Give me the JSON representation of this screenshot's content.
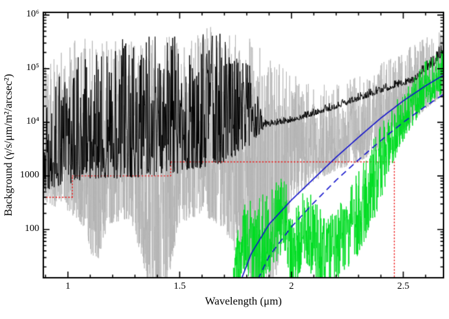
{
  "chart_data": {
    "type": "line",
    "title": "",
    "xlabel": "Wavelength (μm)",
    "ylabel": "Background (γ/s/μm/m²/arcsec²)",
    "xlim": [
      0.89,
      2.68
    ],
    "ylim_log10": [
      1.1,
      6.05
    ],
    "x_major_ticks": [
      1,
      1.5,
      2,
      2.5
    ],
    "x_tick_labels": [
      "1",
      "1.5",
      "2",
      "2.5"
    ],
    "x_minor_tick_step": 0.1,
    "y_major_ticks_log10": [
      2,
      3,
      4,
      5,
      6
    ],
    "y_tick_labels": [
      "100",
      "1000",
      "10⁴",
      "10⁵",
      "10⁶"
    ],
    "grid": false,
    "legend": null,
    "series": [
      {
        "name": "sky-emission-high-resolution",
        "kind": "noisy-spectrum",
        "color": "#b2b2b2",
        "line_width": 0.8,
        "samples": 2400,
        "seed": 1234567,
        "bias": 1.6,
        "x_range": [
          0.89,
          2.68
        ],
        "envelope_low_log10": [
          [
            0.89,
            2.5
          ],
          [
            1.0,
            2.35
          ],
          [
            1.08,
            2.0
          ],
          [
            1.12,
            1.2
          ],
          [
            1.18,
            2.1
          ],
          [
            1.27,
            2.2
          ],
          [
            1.33,
            1.5
          ],
          [
            1.37,
            0.7
          ],
          [
            1.44,
            0.9
          ],
          [
            1.5,
            2.1
          ],
          [
            1.6,
            2.3
          ],
          [
            1.7,
            2.0
          ],
          [
            1.78,
            1.3
          ],
          [
            1.85,
            0.8
          ],
          [
            1.93,
            1.1
          ],
          [
            2.0,
            2.5
          ],
          [
            2.1,
            2.9
          ],
          [
            2.2,
            3.1
          ],
          [
            2.3,
            3.25
          ],
          [
            2.4,
            3.5
          ],
          [
            2.5,
            3.85
          ],
          [
            2.6,
            4.25
          ],
          [
            2.68,
            4.5
          ]
        ],
        "envelope_high_log10": [
          [
            0.89,
            5.2
          ],
          [
            1.0,
            5.5
          ],
          [
            1.1,
            5.6
          ],
          [
            1.2,
            5.6
          ],
          [
            1.3,
            5.5
          ],
          [
            1.4,
            5.55
          ],
          [
            1.5,
            5.7
          ],
          [
            1.6,
            5.8
          ],
          [
            1.68,
            5.75
          ],
          [
            1.8,
            5.6
          ],
          [
            1.9,
            5.3
          ],
          [
            2.0,
            4.9
          ],
          [
            2.1,
            4.7
          ],
          [
            2.2,
            4.75
          ],
          [
            2.3,
            4.9
          ],
          [
            2.45,
            5.2
          ],
          [
            2.55,
            5.5
          ],
          [
            2.68,
            5.8
          ]
        ]
      },
      {
        "name": "red-dotted-threshold",
        "kind": "step",
        "color": "#ee1111",
        "line_width": 1.4,
        "dash": [
          1.2,
          3.4
        ],
        "steps": [
          {
            "x_start": 0.89,
            "x_end": 1.02,
            "value_log10": 2.6
          },
          {
            "x_start": 1.02,
            "x_end": 1.46,
            "value_log10": 3.0
          },
          {
            "x_start": 1.46,
            "x_end": 2.46,
            "value_log10": 3.26
          }
        ],
        "end_drop": {
          "x": 2.46,
          "from_log10": 3.26,
          "to_log10": 1.1
        }
      },
      {
        "name": "sky-emission-smoothed",
        "kind": "noisy-spectrum",
        "color": "#000000",
        "line_width": 1.0,
        "samples": 1000,
        "seed": 424242,
        "bias": 1.7,
        "x_range": [
          0.89,
          2.68
        ],
        "envelope_low_log10": [
          [
            0.89,
            2.7
          ],
          [
            0.95,
            2.8
          ],
          [
            1.1,
            2.95
          ],
          [
            1.3,
            2.95
          ],
          [
            1.5,
            3.05
          ],
          [
            1.7,
            3.25
          ],
          [
            1.8,
            3.5
          ],
          [
            1.88,
            3.9
          ],
          [
            2.0,
            4.0
          ],
          [
            2.2,
            4.25
          ],
          [
            2.4,
            4.55
          ],
          [
            2.55,
            4.75
          ],
          [
            2.68,
            5.2
          ]
        ],
        "envelope_high_log10": [
          [
            0.89,
            4.2
          ],
          [
            0.95,
            4.8
          ],
          [
            1.1,
            5.5
          ],
          [
            1.3,
            5.6
          ],
          [
            1.5,
            5.7
          ],
          [
            1.7,
            5.7
          ],
          [
            1.8,
            5.3
          ],
          [
            1.88,
            4.05
          ],
          [
            2.0,
            4.12
          ],
          [
            2.2,
            4.4
          ],
          [
            2.4,
            4.7
          ],
          [
            2.55,
            4.9
          ],
          [
            2.68,
            5.5
          ]
        ]
      },
      {
        "name": "thermal-emission-spectrum-green",
        "kind": "noisy-spectrum",
        "color": "#00dd22",
        "line_width": 1.0,
        "samples": 900,
        "seed": 777,
        "bias": 1.25,
        "x_range": [
          1.74,
          2.68
        ],
        "envelope_low_log10": [
          [
            1.74,
            0.6
          ],
          [
            1.78,
            1.2
          ],
          [
            1.84,
            0.8
          ],
          [
            1.9,
            1.2
          ],
          [
            1.97,
            1.6
          ],
          [
            2.01,
            0.7
          ],
          [
            2.05,
            1.4
          ],
          [
            2.1,
            1.1
          ],
          [
            2.16,
            0.7
          ],
          [
            2.22,
            1.1
          ],
          [
            2.3,
            1.5
          ],
          [
            2.38,
            2.3
          ],
          [
            2.45,
            3.2
          ],
          [
            2.52,
            3.8
          ],
          [
            2.6,
            4.3
          ],
          [
            2.68,
            4.55
          ]
        ],
        "envelope_high_log10": [
          [
            1.74,
            1.7
          ],
          [
            1.8,
            2.6
          ],
          [
            1.9,
            2.7
          ],
          [
            1.97,
            3.1
          ],
          [
            2.01,
            2.2
          ],
          [
            2.05,
            2.9
          ],
          [
            2.1,
            2.6
          ],
          [
            2.16,
            2.2
          ],
          [
            2.22,
            2.5
          ],
          [
            2.3,
            3.1
          ],
          [
            2.38,
            3.8
          ],
          [
            2.45,
            4.3
          ],
          [
            2.52,
            4.7
          ],
          [
            2.6,
            5.15
          ],
          [
            2.68,
            5.4
          ]
        ]
      },
      {
        "name": "thermal-model-solid-blue",
        "kind": "curve",
        "color": "#1111cc",
        "line_width": 1.6,
        "dash": null,
        "points_log10": [
          [
            1.76,
            0.9
          ],
          [
            1.82,
            1.55
          ],
          [
            1.9,
            2.1
          ],
          [
            2.0,
            2.55
          ],
          [
            2.1,
            2.95
          ],
          [
            2.2,
            3.35
          ],
          [
            2.3,
            3.72
          ],
          [
            2.4,
            4.08
          ],
          [
            2.5,
            4.4
          ],
          [
            2.6,
            4.68
          ],
          [
            2.68,
            4.88
          ]
        ]
      },
      {
        "name": "thermal-model-dashed-blue",
        "kind": "curve",
        "color": "#1111cc",
        "line_width": 1.6,
        "dash": [
          9,
          6
        ],
        "points_log10": [
          [
            1.83,
            0.9
          ],
          [
            1.9,
            1.5
          ],
          [
            2.0,
            2.05
          ],
          [
            2.1,
            2.5
          ],
          [
            2.2,
            2.92
          ],
          [
            2.3,
            3.3
          ],
          [
            2.4,
            3.66
          ],
          [
            2.5,
            4.0
          ],
          [
            2.6,
            4.3
          ],
          [
            2.68,
            4.52
          ]
        ]
      }
    ]
  }
}
